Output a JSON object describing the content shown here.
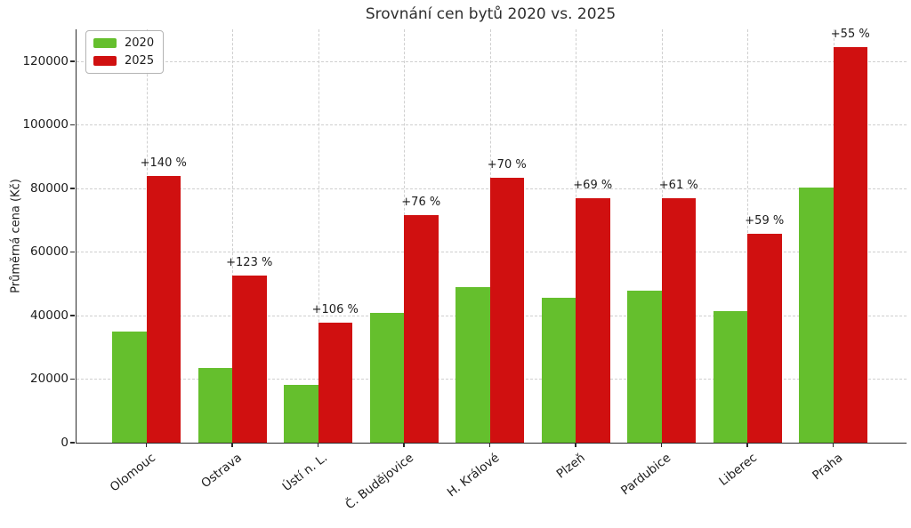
{
  "chart_data": {
    "type": "bar",
    "title": "Srovnání cen bytů 2020 vs. 2025",
    "ylabel": "Průměrná cena (Kč)",
    "xlabel": "",
    "categories": [
      "Olomouc",
      "Ostrava",
      "Ústí n. L.",
      "Č. Budějovice",
      "H. Králové",
      "Plzeň",
      "Pardubice",
      "Liberec",
      "Praha"
    ],
    "series": [
      {
        "name": "2020",
        "color": "#65bf2d",
        "values": [
          35000,
          23600,
          18300,
          40700,
          49000,
          45500,
          47700,
          41400,
          80300
        ]
      },
      {
        "name": "2025",
        "color": "#d01010",
        "values": [
          84000,
          52600,
          37700,
          71600,
          83300,
          76900,
          76800,
          65800,
          124500
        ]
      }
    ],
    "annotations": [
      "+140 %",
      "+123 %",
      "+106 %",
      "+76 %",
      "+70 %",
      "+69 %",
      "+61 %",
      "+59 %",
      "+55 %"
    ],
    "yticks": [
      0,
      20000,
      40000,
      60000,
      80000,
      100000,
      120000
    ],
    "ylim": [
      0,
      130000
    ],
    "grid": true,
    "legend_position": "upper left"
  }
}
